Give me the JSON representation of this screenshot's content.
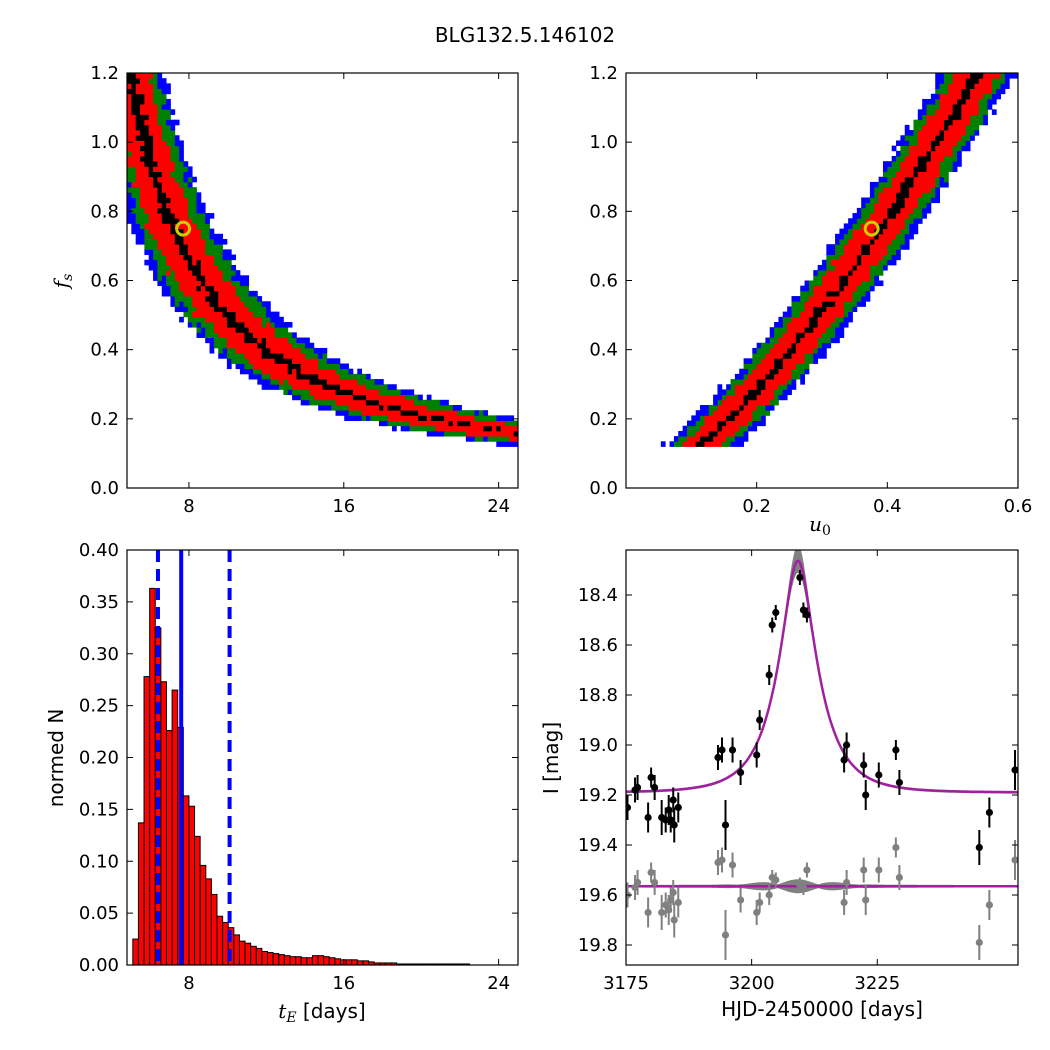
{
  "figure_title": "BLG132.5.146102",
  "chart_data": [
    {
      "id": "tE-fs",
      "type": "heatmap",
      "xlabel": "",
      "ylabel": "f_s",
      "xlim": [
        4.8,
        25
      ],
      "ylim": [
        0,
        1.2
      ],
      "xticks": [
        8,
        16,
        24
      ],
      "yticks": [
        0.0,
        0.2,
        0.4,
        0.6,
        0.8,
        1.0,
        1.2
      ],
      "colors": {
        "outer": "#0000ff",
        "mid": "#008000",
        "inner": "#ff0000",
        "core": "#000000",
        "marker": "#cccc00"
      },
      "best_fit": {
        "x": 7.7,
        "y": 0.75
      }
    },
    {
      "id": "u0-fs",
      "type": "heatmap",
      "xlabel": "u_0",
      "ylabel": "",
      "xlim": [
        0,
        0.6
      ],
      "ylim": [
        0,
        1.2
      ],
      "xticks": [
        0.2,
        0.4,
        0.6
      ],
      "yticks": [
        0.0,
        0.2,
        0.4,
        0.6,
        0.8,
        1.0,
        1.2
      ],
      "colors": {
        "outer": "#0000ff",
        "mid": "#008000",
        "inner": "#ff0000",
        "core": "#000000",
        "marker": "#cccc00"
      },
      "best_fit": {
        "x": 0.376,
        "y": 0.75
      }
    },
    {
      "id": "tE-histogram",
      "type": "bar",
      "xlabel": "t_E [days]",
      "ylabel": "normed N",
      "xlim": [
        4.8,
        25
      ],
      "ylim": [
        0,
        0.4
      ],
      "xticks": [
        8,
        16,
        24
      ],
      "yticks": [
        0.0,
        0.05,
        0.1,
        0.15,
        0.2,
        0.25,
        0.3,
        0.35,
        0.4
      ],
      "bin_width": 0.29,
      "bin_start": 5.1,
      "values": [
        0.025,
        0.137,
        0.278,
        0.363,
        0.325,
        0.273,
        0.226,
        0.265,
        0.229,
        0.163,
        0.153,
        0.124,
        0.096,
        0.083,
        0.068,
        0.047,
        0.041,
        0.036,
        0.029,
        0.023,
        0.021,
        0.018,
        0.016,
        0.013,
        0.012,
        0.011,
        0.01,
        0.009,
        0.008,
        0.008,
        0.007,
        0.007,
        0.009,
        0.009,
        0.008,
        0.007,
        0.006,
        0.005,
        0.005,
        0.005,
        0.004,
        0.004,
        0.003,
        0.002,
        0.002,
        0.002,
        0.002,
        0.001,
        0.001,
        0.001,
        0.001,
        0.001,
        0.001,
        0.001,
        0.001,
        0.001,
        0.001,
        0.001,
        0.001,
        0.001
      ],
      "bar_color": "#ff0000",
      "median": 7.6,
      "interval": [
        6.4,
        10.1
      ]
    },
    {
      "id": "light-curve",
      "type": "scatter",
      "xlabel": "HJD-2450000 [days]",
      "ylabel": "I [mag]",
      "xlim": [
        3175,
        3253
      ],
      "ylim": [
        19.88,
        18.22
      ],
      "xticks": [
        3175,
        3200,
        3225
      ],
      "yticks": [
        18.4,
        18.6,
        18.8,
        19.0,
        19.2,
        19.4,
        19.6,
        19.8
      ],
      "model": {
        "t0": 3209.2,
        "tE": 7.7,
        "u0": 0.376,
        "fs": 0.75,
        "baseline": 19.19
      },
      "residual_offset": 19.565,
      "series": [
        {
          "color": "#000000",
          "points": [
            [
              3175.3,
              19.25,
              0.05
            ],
            [
              3176.8,
              19.18,
              0.05
            ],
            [
              3177.3,
              19.17,
              0.05
            ],
            [
              3179.4,
              19.29,
              0.06
            ],
            [
              3180.0,
              19.13,
              0.04
            ],
            [
              3180.7,
              19.17,
              0.05
            ],
            [
              3182.1,
              19.29,
              0.07
            ],
            [
              3182.9,
              19.3,
              0.05
            ],
            [
              3183.5,
              19.26,
              0.06
            ],
            [
              3183.9,
              19.3,
              0.05
            ],
            [
              3184.4,
              19.22,
              0.05
            ],
            [
              3184.6,
              19.32,
              0.07
            ],
            [
              3185.4,
              19.25,
              0.06
            ],
            [
              3193.3,
              19.05,
              0.05
            ],
            [
              3194.1,
              19.02,
              0.05
            ],
            [
              3194.8,
              19.32,
              0.1
            ],
            [
              3196.2,
              19.02,
              0.05
            ],
            [
              3197.8,
              19.11,
              0.05
            ],
            [
              3201.0,
              19.04,
              0.05
            ],
            [
              3201.6,
              18.9,
              0.04
            ],
            [
              3203.5,
              18.72,
              0.04
            ],
            [
              3204.1,
              18.52,
              0.03
            ],
            [
              3204.8,
              18.47,
              0.03
            ],
            [
              3209.6,
              18.33,
              0.03
            ],
            [
              3210.3,
              18.46,
              0.03
            ],
            [
              3211.0,
              18.48,
              0.03
            ],
            [
              3218.4,
              19.06,
              0.05
            ],
            [
              3218.9,
              19.0,
              0.05
            ],
            [
              3222.3,
              19.08,
              0.05
            ],
            [
              3222.7,
              19.2,
              0.06
            ],
            [
              3225.3,
              19.12,
              0.05
            ],
            [
              3228.7,
              19.02,
              0.04
            ],
            [
              3229.4,
              19.15,
              0.05
            ],
            [
              3245.3,
              19.41,
              0.07
            ],
            [
              3247.3,
              19.27,
              0.06
            ],
            [
              3252.4,
              19.1,
              0.08
            ]
          ]
        },
        {
          "color": "#808080",
          "points": [
            [
              3175.3,
              19.6,
              0.05
            ],
            [
              3176.8,
              19.57,
              0.05
            ],
            [
              3177.3,
              19.55,
              0.05
            ],
            [
              3179.4,
              19.67,
              0.06
            ],
            [
              3180.0,
              19.51,
              0.04
            ],
            [
              3180.7,
              19.55,
              0.05
            ],
            [
              3182.1,
              19.67,
              0.07
            ],
            [
              3182.9,
              19.64,
              0.05
            ],
            [
              3183.5,
              19.66,
              0.06
            ],
            [
              3183.9,
              19.62,
              0.05
            ],
            [
              3184.4,
              19.59,
              0.05
            ],
            [
              3184.6,
              19.7,
              0.07
            ],
            [
              3185.4,
              19.63,
              0.06
            ],
            [
              3193.3,
              19.47,
              0.05
            ],
            [
              3194.1,
              19.46,
              0.05
            ],
            [
              3194.8,
              19.76,
              0.1
            ],
            [
              3196.2,
              19.48,
              0.05
            ],
            [
              3197.8,
              19.62,
              0.05
            ],
            [
              3201.0,
              19.67,
              0.05
            ],
            [
              3201.6,
              19.63,
              0.04
            ],
            [
              3203.5,
              19.6,
              0.04
            ],
            [
              3204.1,
              19.53,
              0.03
            ],
            [
              3204.8,
              19.54,
              0.03
            ],
            [
              3209.6,
              19.56,
              0.03
            ],
            [
              3210.3,
              19.57,
              0.03
            ],
            [
              3211.0,
              19.5,
              0.03
            ],
            [
              3218.4,
              19.63,
              0.05
            ],
            [
              3218.9,
              19.55,
              0.05
            ],
            [
              3222.3,
              19.5,
              0.05
            ],
            [
              3222.7,
              19.62,
              0.06
            ],
            [
              3225.3,
              19.5,
              0.05
            ],
            [
              3228.7,
              19.41,
              0.04
            ],
            [
              3229.4,
              19.53,
              0.05
            ],
            [
              3245.3,
              19.79,
              0.07
            ],
            [
              3247.3,
              19.64,
              0.06
            ],
            [
              3252.4,
              19.46,
              0.08
            ]
          ]
        }
      ],
      "band_color": "#808080",
      "model_color": "#a020a0"
    }
  ]
}
